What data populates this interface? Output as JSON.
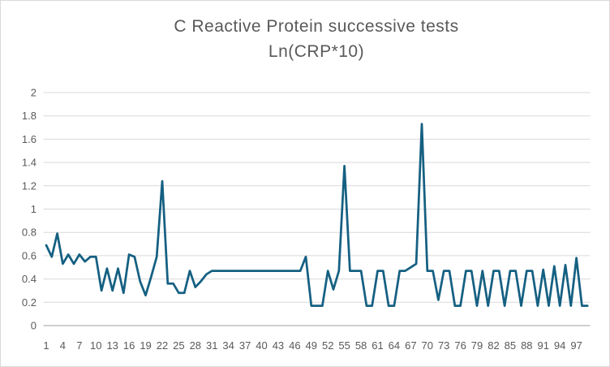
{
  "chart": {
    "title": "C Reactive Protein successive tests",
    "subtitle": "Ln(CRP*10)"
  },
  "chart_data": {
    "type": "line",
    "title": "C Reactive Protein successive tests",
    "subtitle": "Ln(CRP*10)",
    "xlabel": "",
    "ylabel": "",
    "x_range": [
      1,
      99
    ],
    "ylim": [
      0,
      2
    ],
    "grid": true,
    "legend": false,
    "x_ticks": [
      1,
      4,
      7,
      10,
      13,
      16,
      19,
      22,
      25,
      28,
      31,
      34,
      37,
      40,
      43,
      46,
      49,
      52,
      55,
      58,
      61,
      64,
      67,
      70,
      73,
      76,
      79,
      82,
      85,
      88,
      91,
      94,
      97
    ],
    "y_tick_values": [
      0,
      0.2,
      0.4,
      0.6,
      0.8,
      1,
      1.2,
      1.4,
      1.6,
      1.8,
      2
    ],
    "y_tick_labels": [
      "0",
      "0.2",
      "0.4",
      "0.6",
      "0.8",
      "1",
      "1.2",
      "1.4",
      "1.6",
      "1.8",
      "2"
    ],
    "values": [
      0.69,
      0.59,
      0.79,
      0.53,
      0.61,
      0.53,
      0.61,
      0.55,
      0.59,
      0.59,
      0.3,
      0.49,
      0.3,
      0.49,
      0.28,
      0.61,
      0.59,
      0.38,
      0.26,
      0.42,
      0.59,
      1.24,
      0.36,
      0.36,
      0.28,
      0.28,
      0.47,
      0.33,
      0.38,
      0.44,
      0.47,
      0.47,
      0.47,
      0.47,
      0.47,
      0.47,
      0.47,
      0.47,
      0.47,
      0.47,
      0.47,
      0.47,
      0.47,
      0.47,
      0.47,
      0.47,
      0.47,
      0.59,
      0.17,
      0.17,
      0.17,
      0.47,
      0.31,
      0.47,
      1.37,
      0.47,
      0.47,
      0.47,
      0.17,
      0.17,
      0.47,
      0.47,
      0.17,
      0.17,
      0.47,
      0.47,
      0.5,
      0.53,
      1.73,
      0.47,
      0.47,
      0.22,
      0.47,
      0.47,
      0.17,
      0.17,
      0.47,
      0.47,
      0.17,
      0.47,
      0.17,
      0.47,
      0.47,
      0.17,
      0.47,
      0.47,
      0.17,
      0.47,
      0.47,
      0.17,
      0.48,
      0.17,
      0.51,
      0.17,
      0.52,
      0.17,
      0.58,
      0.17,
      0.17
    ],
    "colors": {
      "line": "#156082",
      "gridline": "#D9D9D9",
      "axis": "#BFBFBF",
      "tick_text": "#595959",
      "title_text": "#595959",
      "background": "#FFFFFF",
      "border": "#D9D9D9"
    }
  }
}
